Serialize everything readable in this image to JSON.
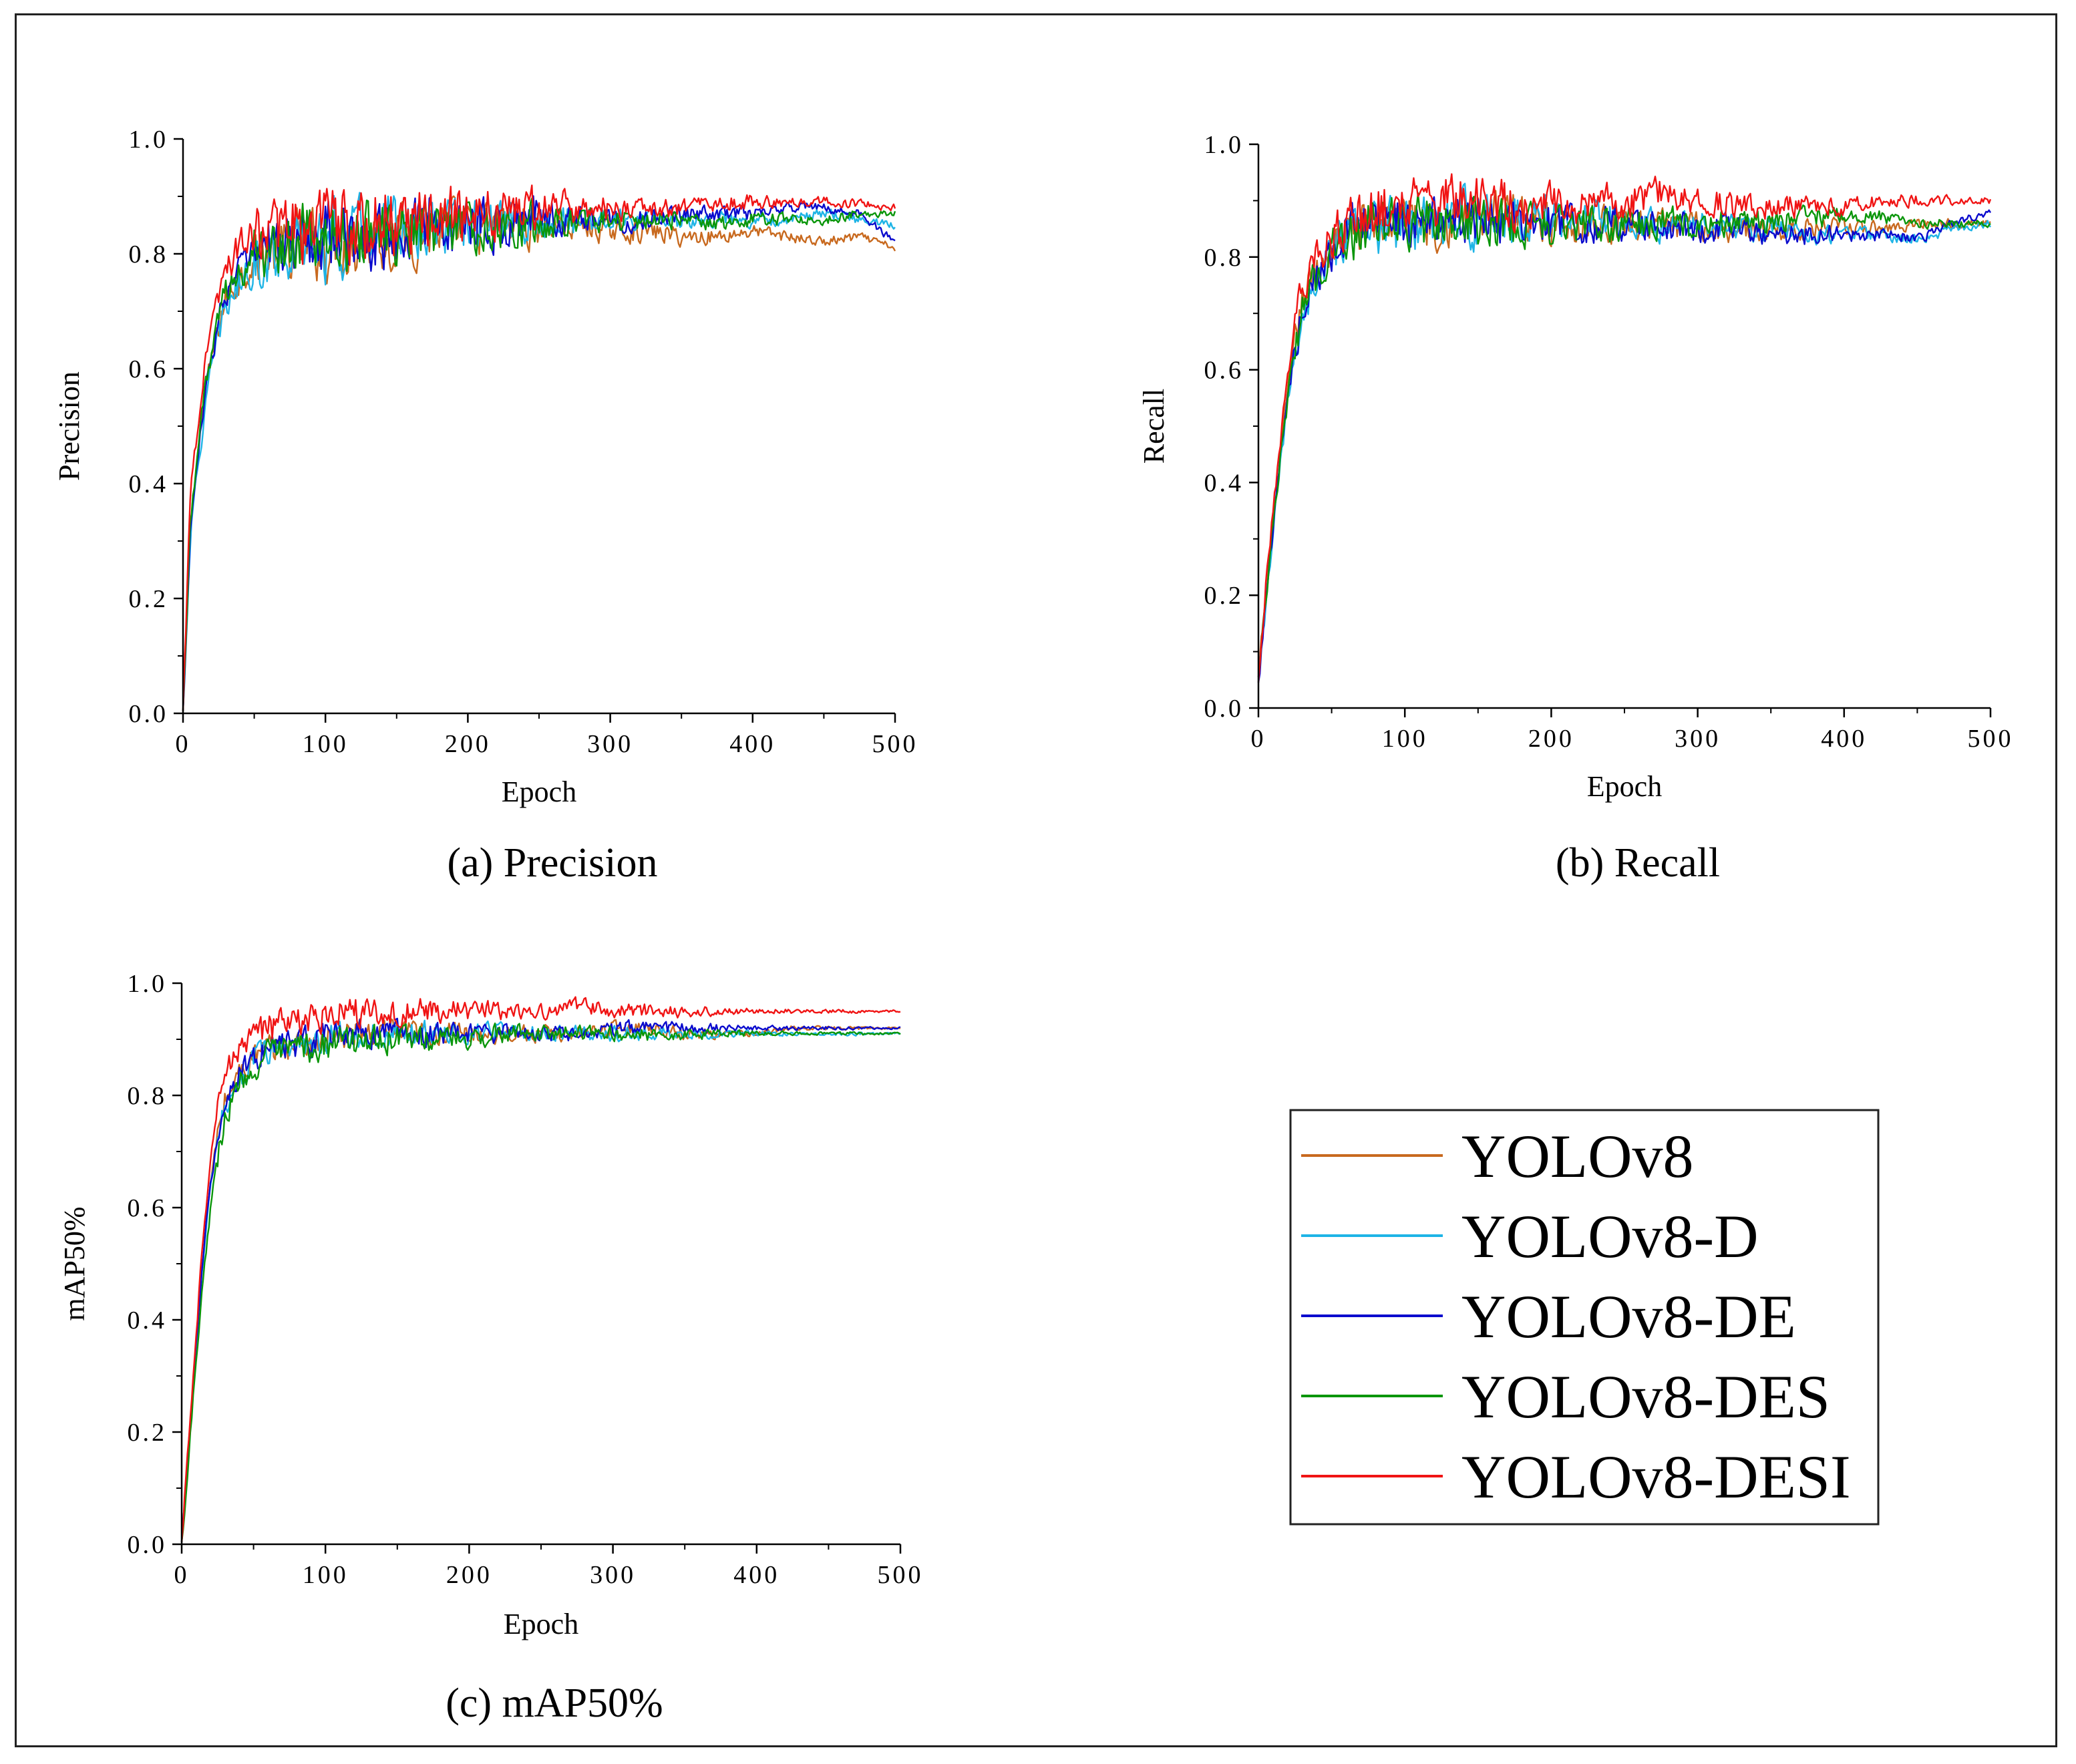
{
  "chart_data": [
    {
      "type": "line",
      "caption": "(a) Precision",
      "xlabel": "Epoch",
      "ylabel": "Precision",
      "xlim": [
        0,
        500
      ],
      "ylim": [
        0.0,
        1.0
      ],
      "xticks": [
        "0",
        "100",
        "200",
        "300",
        "400",
        "500"
      ],
      "yticks": [
        "0.0",
        "0.2",
        "0.4",
        "0.6",
        "0.8",
        "1.0"
      ],
      "x": [
        0,
        5,
        10,
        15,
        20,
        25,
        30,
        40,
        50,
        60,
        80,
        100,
        125,
        150,
        175,
        200,
        225,
        250,
        275,
        300,
        325,
        350,
        375,
        400,
        425,
        450,
        475,
        500
      ],
      "series": [
        {
          "name": "YOLOv8",
          "values": [
            0.0,
            0.32,
            0.45,
            0.55,
            0.62,
            0.68,
            0.72,
            0.76,
            0.79,
            0.8,
            0.81,
            0.82,
            0.83,
            0.83,
            0.84,
            0.84,
            0.85,
            0.85,
            0.85,
            0.84,
            0.84,
            0.83,
            0.83,
            0.84,
            0.83,
            0.82,
            0.83,
            0.81
          ]
        },
        {
          "name": "YOLOv8-D",
          "values": [
            0.0,
            0.3,
            0.42,
            0.52,
            0.6,
            0.66,
            0.71,
            0.75,
            0.78,
            0.8,
            0.81,
            0.82,
            0.83,
            0.84,
            0.84,
            0.85,
            0.85,
            0.85,
            0.86,
            0.86,
            0.86,
            0.86,
            0.86,
            0.86,
            0.86,
            0.87,
            0.86,
            0.85
          ]
        },
        {
          "name": "YOLOv8-DE",
          "values": [
            0.0,
            0.31,
            0.44,
            0.54,
            0.62,
            0.68,
            0.73,
            0.77,
            0.8,
            0.81,
            0.82,
            0.83,
            0.83,
            0.84,
            0.85,
            0.85,
            0.85,
            0.86,
            0.86,
            0.86,
            0.86,
            0.87,
            0.87,
            0.87,
            0.88,
            0.88,
            0.87,
            0.82
          ]
        },
        {
          "name": "YOLOv8-DES",
          "values": [
            0.0,
            0.33,
            0.46,
            0.56,
            0.63,
            0.69,
            0.73,
            0.77,
            0.8,
            0.81,
            0.82,
            0.83,
            0.83,
            0.84,
            0.84,
            0.84,
            0.85,
            0.85,
            0.86,
            0.86,
            0.86,
            0.86,
            0.85,
            0.86,
            0.86,
            0.86,
            0.87,
            0.87
          ]
        },
        {
          "name": "YOLOv8-DESI",
          "values": [
            0.0,
            0.38,
            0.5,
            0.6,
            0.68,
            0.74,
            0.78,
            0.81,
            0.83,
            0.84,
            0.84,
            0.85,
            0.85,
            0.86,
            0.86,
            0.87,
            0.87,
            0.88,
            0.88,
            0.88,
            0.88,
            0.88,
            0.89,
            0.89,
            0.89,
            0.89,
            0.89,
            0.88
          ]
        }
      ],
      "noise": [
        0.015,
        0.028,
        0.045,
        0.055,
        0.058,
        0.055,
        0.05,
        0.045,
        0.04,
        0.035,
        0.025,
        0.02,
        0.018,
        0.015,
        0.012,
        0.012,
        0.01,
        0.008,
        0.008,
        0.006
      ]
    },
    {
      "type": "line",
      "caption": "(b) Recall",
      "xlabel": "Epoch",
      "ylabel": "Recall",
      "xlim": [
        0,
        500
      ],
      "ylim": [
        0.0,
        1.0
      ],
      "xticks": [
        "0",
        "100",
        "200",
        "300",
        "400",
        "500"
      ],
      "yticks": [
        "0.0",
        "0.2",
        "0.4",
        "0.6",
        "0.8",
        "1.0"
      ],
      "x": [
        0,
        5,
        10,
        15,
        20,
        25,
        30,
        40,
        50,
        60,
        80,
        100,
        125,
        150,
        175,
        200,
        225,
        250,
        275,
        300,
        325,
        350,
        375,
        400,
        425,
        450,
        475,
        500
      ],
      "series": [
        {
          "name": "YOLOv8",
          "values": [
            0.05,
            0.2,
            0.33,
            0.45,
            0.56,
            0.65,
            0.72,
            0.78,
            0.82,
            0.84,
            0.86,
            0.87,
            0.87,
            0.87,
            0.87,
            0.86,
            0.86,
            0.86,
            0.86,
            0.85,
            0.85,
            0.85,
            0.85,
            0.85,
            0.85,
            0.86,
            0.86,
            0.86
          ]
        },
        {
          "name": "YOLOv8-D",
          "values": [
            0.04,
            0.18,
            0.31,
            0.43,
            0.54,
            0.63,
            0.7,
            0.76,
            0.8,
            0.83,
            0.85,
            0.86,
            0.86,
            0.87,
            0.87,
            0.87,
            0.87,
            0.87,
            0.86,
            0.86,
            0.85,
            0.85,
            0.84,
            0.84,
            0.84,
            0.83,
            0.85,
            0.86
          ]
        },
        {
          "name": "YOLOv8-DE",
          "values": [
            0.04,
            0.19,
            0.32,
            0.44,
            0.55,
            0.64,
            0.71,
            0.77,
            0.81,
            0.84,
            0.86,
            0.86,
            0.86,
            0.86,
            0.86,
            0.86,
            0.86,
            0.86,
            0.85,
            0.85,
            0.85,
            0.84,
            0.84,
            0.84,
            0.84,
            0.83,
            0.86,
            0.88
          ]
        },
        {
          "name": "YOLOv8-DES",
          "values": [
            0.05,
            0.2,
            0.33,
            0.44,
            0.55,
            0.64,
            0.71,
            0.77,
            0.81,
            0.83,
            0.85,
            0.86,
            0.86,
            0.86,
            0.86,
            0.86,
            0.86,
            0.86,
            0.86,
            0.86,
            0.86,
            0.86,
            0.87,
            0.87,
            0.87,
            0.86,
            0.86,
            0.86
          ]
        },
        {
          "name": "YOLOv8-DESI",
          "values": [
            0.04,
            0.22,
            0.36,
            0.48,
            0.59,
            0.67,
            0.74,
            0.8,
            0.84,
            0.86,
            0.88,
            0.9,
            0.9,
            0.9,
            0.89,
            0.89,
            0.89,
            0.9,
            0.91,
            0.9,
            0.89,
            0.89,
            0.89,
            0.89,
            0.9,
            0.9,
            0.9,
            0.9
          ]
        }
      ],
      "noise": [
        0.015,
        0.03,
        0.04,
        0.045,
        0.045,
        0.045,
        0.04,
        0.035,
        0.03,
        0.03,
        0.028,
        0.025,
        0.022,
        0.02,
        0.018,
        0.015,
        0.012,
        0.01,
        0.008,
        0.006
      ]
    },
    {
      "type": "line",
      "caption": "(c) mAP50%",
      "xlabel": "Epoch",
      "ylabel": "mAP50%",
      "xlim": [
        0,
        500
      ],
      "ylim": [
        0.0,
        1.0
      ],
      "xticks": [
        "0",
        "100",
        "200",
        "300",
        "400",
        "500"
      ],
      "yticks": [
        "0.0",
        "0.2",
        "0.4",
        "0.6",
        "0.8",
        "1.0"
      ],
      "x": [
        0,
        5,
        10,
        15,
        20,
        25,
        30,
        40,
        50,
        60,
        80,
        100,
        125,
        150,
        175,
        200,
        225,
        250,
        275,
        300,
        325,
        350,
        375,
        400,
        425,
        450,
        475,
        500
      ],
      "series": [
        {
          "name": "YOLOv8",
          "values": [
            0.0,
            0.18,
            0.36,
            0.52,
            0.64,
            0.73,
            0.79,
            0.84,
            0.87,
            0.88,
            0.89,
            0.9,
            0.91,
            0.91,
            0.91,
            0.91,
            0.91,
            0.91,
            0.91,
            0.92,
            0.92,
            0.91,
            0.91,
            0.91,
            0.92,
            0.92,
            0.92,
            0.92
          ]
        },
        {
          "name": "YOLOv8-D",
          "values": [
            0.0,
            0.17,
            0.35,
            0.51,
            0.63,
            0.72,
            0.78,
            0.83,
            0.86,
            0.88,
            0.89,
            0.9,
            0.91,
            0.91,
            0.91,
            0.91,
            0.91,
            0.91,
            0.91,
            0.91,
            0.91,
            0.91,
            0.91,
            0.91,
            0.91,
            0.91,
            0.91,
            0.91
          ]
        },
        {
          "name": "YOLOv8-DE",
          "values": [
            0.0,
            0.18,
            0.36,
            0.52,
            0.64,
            0.73,
            0.79,
            0.84,
            0.87,
            0.88,
            0.89,
            0.9,
            0.91,
            0.91,
            0.91,
            0.91,
            0.91,
            0.91,
            0.91,
            0.92,
            0.92,
            0.92,
            0.92,
            0.92,
            0.92,
            0.92,
            0.92,
            0.92
          ]
        },
        {
          "name": "YOLOv8-DES",
          "values": [
            0.0,
            0.16,
            0.33,
            0.48,
            0.6,
            0.69,
            0.76,
            0.82,
            0.85,
            0.87,
            0.88,
            0.89,
            0.9,
            0.9,
            0.9,
            0.9,
            0.91,
            0.91,
            0.91,
            0.91,
            0.91,
            0.91,
            0.91,
            0.91,
            0.91,
            0.91,
            0.91,
            0.91
          ]
        },
        {
          "name": "YOLOv8-DESI",
          "values": [
            0.0,
            0.19,
            0.38,
            0.55,
            0.68,
            0.78,
            0.84,
            0.88,
            0.91,
            0.92,
            0.93,
            0.94,
            0.95,
            0.95,
            0.95,
            0.95,
            0.95,
            0.95,
            0.96,
            0.95,
            0.95,
            0.95,
            0.95,
            0.95,
            0.95,
            0.95,
            0.95,
            0.95
          ]
        }
      ],
      "noise": [
        0.01,
        0.02,
        0.025,
        0.025,
        0.025,
        0.022,
        0.02,
        0.018,
        0.016,
        0.014,
        0.012,
        0.012,
        0.012,
        0.01,
        0.008,
        0.005,
        0.004,
        0.003,
        0.003,
        0.002
      ]
    }
  ],
  "legend": {
    "entries": [
      {
        "label": "YOLOv8",
        "color": "#C8691E"
      },
      {
        "label": "YOLOv8-D",
        "color": "#1EB4E6"
      },
      {
        "label": "YOLOv8-DE",
        "color": "#0A0ACD"
      },
      {
        "label": "YOLOv8-DES",
        "color": "#0A960A"
      },
      {
        "label": "YOLOv8-DESI",
        "color": "#F01414"
      }
    ]
  }
}
